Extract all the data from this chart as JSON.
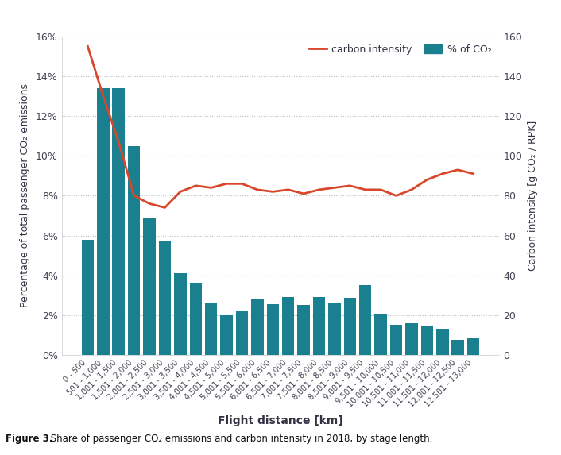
{
  "categories": [
    "0 - 500",
    "501 - 1,000",
    "1,001 - 1,500",
    "1,501 - 2,000",
    "2,001 - 2,500",
    "2,501 - 3,000",
    "3,001 - 3,500",
    "3,501 - 4,000",
    "4,001 - 4,500",
    "4,501 - 5,000",
    "5,001 - 5,500",
    "5,501 - 6,000",
    "6,001 - 6,500",
    "6,501 - 7,000",
    "7,001 - 7,500",
    "7,501 - 8,000",
    "8,001 - 8,500",
    "8,501 - 9,000",
    "9,001 - 9,500",
    "9,501 - 10,000",
    "10,001 - 10,500",
    "10,501 - 11,000",
    "11,001 - 11,500",
    "11,501 - 12,000",
    "12,001 - 12,500",
    "12,501 - 13,000"
  ],
  "bar_values": [
    5.8,
    13.4,
    13.4,
    10.5,
    6.9,
    5.7,
    4.1,
    3.6,
    2.6,
    2.0,
    2.2,
    2.8,
    2.55,
    2.9,
    2.5,
    2.9,
    2.65,
    2.85,
    3.5,
    2.05,
    1.5,
    1.6,
    1.45,
    1.3,
    0.75,
    0.85
  ],
  "bar_color": "#1a7f8e",
  "carbon_intensity": [
    155,
    130,
    107,
    80,
    76,
    74,
    82,
    85,
    84,
    86,
    86,
    83,
    82,
    83,
    81,
    83,
    84,
    85,
    83,
    83,
    80,
    83,
    88,
    91,
    93,
    91
  ],
  "line_color": "#d9472b",
  "ylabel_left": "Percentage of total passenger CO₂ emissions",
  "ylabel_right": "Carbon intensity [g CO₂ / RPK]",
  "xlabel": "Flight distance [km]",
  "yticks_left": [
    0,
    2,
    4,
    6,
    8,
    10,
    12,
    14,
    16
  ],
  "yticks_right": [
    0,
    20,
    40,
    60,
    80,
    100,
    120,
    140,
    160
  ],
  "ylim_left": [
    0,
    16
  ],
  "ylim_right": [
    0,
    160
  ],
  "legend_labels": [
    "carbon intensity",
    "% of CO₂"
  ],
  "caption_bold": "Figure 3.",
  "caption_normal": " Share of passenger CO₂ emissions and carbon intensity in 2018, by stage length.",
  "background_color": "#ffffff",
  "grid_color": "#bbbbbb",
  "tick_color": "#444455",
  "label_color": "#333344"
}
